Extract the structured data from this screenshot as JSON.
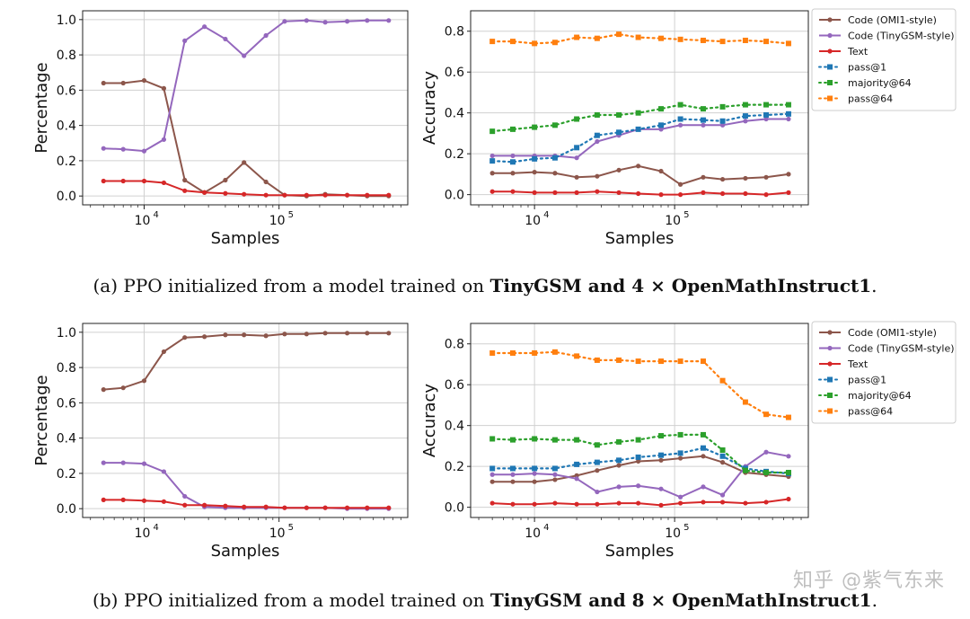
{
  "chart_data": [
    {
      "type": "line",
      "panel": "a-left",
      "xlabel": "Samples",
      "ylabel": "Percentage",
      "xscale": "log",
      "xlim": [
        3500.0,
        900000.0
      ],
      "ylim": [
        -0.05,
        1.05
      ],
      "yticks": [
        "0.0",
        "0.2",
        "0.4",
        "0.6",
        "0.8",
        "1.0"
      ],
      "xticks": [
        {
          "base": "10",
          "exp": "4",
          "value": 10000
        },
        {
          "base": "10",
          "exp": "5",
          "value": 100000
        }
      ],
      "x": [
        5000,
        7000,
        10000,
        14000,
        20000,
        28000,
        40000,
        55000,
        80000,
        110000,
        160000,
        220000,
        320000,
        450000,
        650000
      ],
      "series": [
        {
          "name": "Code (OMI1-style)",
          "values": [
            0.64,
            0.64,
            0.655,
            0.61,
            0.09,
            0.02,
            0.09,
            0.19,
            0.08,
            0.005,
            0.0,
            0.01,
            0.005,
            0.0,
            0.0
          ]
        },
        {
          "name": "Code (TinyGSM-style)",
          "values": [
            0.27,
            0.265,
            0.255,
            0.32,
            0.88,
            0.96,
            0.89,
            0.795,
            0.91,
            0.99,
            0.995,
            0.985,
            0.99,
            0.995,
            0.995
          ]
        },
        {
          "name": "Text",
          "values": [
            0.085,
            0.085,
            0.085,
            0.075,
            0.03,
            0.02,
            0.015,
            0.01,
            0.005,
            0.005,
            0.005,
            0.005,
            0.005,
            0.005,
            0.005
          ]
        }
      ]
    },
    {
      "type": "line",
      "panel": "a-right",
      "xlabel": "Samples",
      "ylabel": "Accuracy",
      "xscale": "log",
      "xlim": [
        3500.0,
        900000.0
      ],
      "ylim": [
        -0.05,
        0.9
      ],
      "yticks": [
        "0.0",
        "0.2",
        "0.4",
        "0.6",
        "0.8"
      ],
      "xticks": [
        {
          "base": "10",
          "exp": "4",
          "value": 10000
        },
        {
          "base": "10",
          "exp": "5",
          "value": 100000
        }
      ],
      "x": [
        5000,
        7000,
        10000,
        14000,
        20000,
        28000,
        40000,
        55000,
        80000,
        110000,
        160000,
        220000,
        320000,
        450000,
        650000
      ],
      "series": [
        {
          "name": "Code (OMI1-style)",
          "values": [
            0.105,
            0.105,
            0.11,
            0.105,
            0.085,
            0.09,
            0.12,
            0.14,
            0.115,
            0.05,
            0.085,
            0.075,
            0.08,
            0.085,
            0.1
          ]
        },
        {
          "name": "Code (TinyGSM-style)",
          "values": [
            0.19,
            0.19,
            0.19,
            0.19,
            0.18,
            0.26,
            0.29,
            0.32,
            0.32,
            0.34,
            0.34,
            0.34,
            0.36,
            0.37,
            0.37
          ]
        },
        {
          "name": "Text",
          "values": [
            0.015,
            0.015,
            0.01,
            0.01,
            0.01,
            0.015,
            0.01,
            0.005,
            0.0,
            0.0,
            0.01,
            0.005,
            0.005,
            0.0,
            0.01
          ]
        },
        {
          "name": "pass@1",
          "values": [
            0.165,
            0.16,
            0.175,
            0.18,
            0.23,
            0.29,
            0.305,
            0.32,
            0.34,
            0.37,
            0.365,
            0.36,
            0.385,
            0.39,
            0.395
          ]
        },
        {
          "name": "majority@64",
          "values": [
            0.31,
            0.32,
            0.33,
            0.34,
            0.37,
            0.39,
            0.39,
            0.4,
            0.42,
            0.44,
            0.42,
            0.43,
            0.44,
            0.44,
            0.44
          ]
        },
        {
          "name": "pass@64",
          "values": [
            0.75,
            0.75,
            0.74,
            0.745,
            0.77,
            0.765,
            0.785,
            0.77,
            0.765,
            0.76,
            0.755,
            0.75,
            0.755,
            0.75,
            0.74
          ]
        }
      ]
    },
    {
      "type": "line",
      "panel": "b-left",
      "xlabel": "Samples",
      "ylabel": "Percentage",
      "xscale": "log",
      "xlim": [
        3500.0,
        900000.0
      ],
      "ylim": [
        -0.05,
        1.05
      ],
      "yticks": [
        "0.0",
        "0.2",
        "0.4",
        "0.6",
        "0.8",
        "1.0"
      ],
      "xticks": [
        {
          "base": "10",
          "exp": "4",
          "value": 10000
        },
        {
          "base": "10",
          "exp": "5",
          "value": 100000
        }
      ],
      "x": [
        5000,
        7000,
        10000,
        14000,
        20000,
        28000,
        40000,
        55000,
        80000,
        110000,
        160000,
        220000,
        320000,
        450000,
        650000
      ],
      "series": [
        {
          "name": "Code (OMI1-style)",
          "values": [
            0.675,
            0.685,
            0.725,
            0.89,
            0.97,
            0.975,
            0.985,
            0.985,
            0.98,
            0.99,
            0.99,
            0.995,
            0.995,
            0.995,
            0.995
          ]
        },
        {
          "name": "Code (TinyGSM-style)",
          "values": [
            0.26,
            0.26,
            0.255,
            0.21,
            0.07,
            0.01,
            0.005,
            0.005,
            0.005,
            0.005,
            0.005,
            0.005,
            0.0,
            0.0,
            0.0
          ]
        },
        {
          "name": "Text",
          "values": [
            0.05,
            0.05,
            0.045,
            0.04,
            0.02,
            0.02,
            0.015,
            0.01,
            0.01,
            0.005,
            0.005,
            0.005,
            0.005,
            0.005,
            0.005
          ]
        }
      ]
    },
    {
      "type": "line",
      "panel": "b-right",
      "xlabel": "Samples",
      "ylabel": "Accuracy",
      "xscale": "log",
      "xlim": [
        3500.0,
        900000.0
      ],
      "ylim": [
        -0.05,
        0.9
      ],
      "yticks": [
        "0.0",
        "0.2",
        "0.4",
        "0.6",
        "0.8"
      ],
      "xticks": [
        {
          "base": "10",
          "exp": "4",
          "value": 10000
        },
        {
          "base": "10",
          "exp": "5",
          "value": 100000
        }
      ],
      "x": [
        5000,
        7000,
        10000,
        14000,
        20000,
        28000,
        40000,
        55000,
        80000,
        110000,
        160000,
        220000,
        320000,
        450000,
        650000
      ],
      "series": [
        {
          "name": "Code (OMI1-style)",
          "values": [
            0.125,
            0.125,
            0.125,
            0.135,
            0.155,
            0.18,
            0.205,
            0.225,
            0.23,
            0.24,
            0.25,
            0.22,
            0.17,
            0.16,
            0.15
          ]
        },
        {
          "name": "Code (TinyGSM-style)",
          "values": [
            0.16,
            0.16,
            0.165,
            0.16,
            0.14,
            0.075,
            0.1,
            0.105,
            0.09,
            0.05,
            0.1,
            0.06,
            0.2,
            0.27,
            0.25
          ]
        },
        {
          "name": "Text",
          "values": [
            0.02,
            0.015,
            0.015,
            0.02,
            0.015,
            0.015,
            0.02,
            0.02,
            0.01,
            0.02,
            0.025,
            0.025,
            0.02,
            0.025,
            0.04
          ]
        },
        {
          "name": "pass@1",
          "values": [
            0.19,
            0.19,
            0.19,
            0.19,
            0.21,
            0.22,
            0.23,
            0.245,
            0.255,
            0.265,
            0.29,
            0.25,
            0.19,
            0.175,
            0.165
          ]
        },
        {
          "name": "majority@64",
          "values": [
            0.335,
            0.33,
            0.335,
            0.33,
            0.33,
            0.305,
            0.32,
            0.33,
            0.35,
            0.355,
            0.355,
            0.28,
            0.18,
            0.17,
            0.17
          ]
        },
        {
          "name": "pass@64",
          "values": [
            0.755,
            0.755,
            0.755,
            0.76,
            0.74,
            0.72,
            0.72,
            0.715,
            0.715,
            0.715,
            0.715,
            0.62,
            0.515,
            0.455,
            0.44
          ]
        }
      ]
    }
  ],
  "series_styles": {
    "Code (OMI1-style)": {
      "color": "#8c564b",
      "style": "solid",
      "marker": "circle"
    },
    "Code (TinyGSM-style)": {
      "color": "#9467bd",
      "style": "solid",
      "marker": "circle"
    },
    "Text": {
      "color": "#d62728",
      "style": "solid",
      "marker": "circle"
    },
    "pass@1": {
      "color": "#1f77b4",
      "style": "dotted",
      "marker": "square"
    },
    "majority@64": {
      "color": "#2ca02c",
      "style": "dotted",
      "marker": "square"
    },
    "pass@64": {
      "color": "#ff7f0e",
      "style": "dotted",
      "marker": "square"
    }
  },
  "captions": {
    "a": {
      "prefix": "(a) PPO initialized from a model trained on ",
      "bold": "TinyGSM and 4 × OpenMathInstruct1",
      "suffix": "."
    },
    "b": {
      "prefix": "(b) PPO initialized from a model trained on ",
      "bold": "TinyGSM and 8 × OpenMathInstruct1",
      "suffix": "."
    }
  },
  "watermark": "知乎 @紫气东来"
}
